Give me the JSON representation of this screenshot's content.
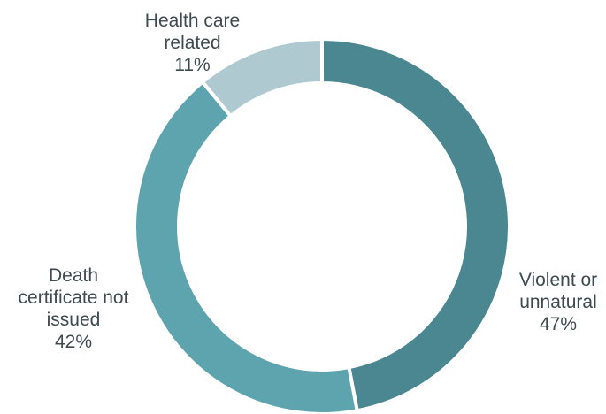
{
  "chart_data": {
    "type": "donut",
    "title": "",
    "slices": [
      {
        "lines": [
          "Violent or",
          "unnatural"
        ],
        "value": 47,
        "value_label": "47%",
        "color": "#4a8790"
      },
      {
        "lines": [
          "Death",
          "certificate not",
          "issued"
        ],
        "value": 42,
        "value_label": "42%",
        "color": "#5da4af"
      },
      {
        "lines": [
          "Health care",
          "related"
        ],
        "value": 11,
        "value_label": "11%",
        "color": "#aec9d0"
      }
    ],
    "start_angle": "12 o'clock",
    "direction": "clockwise",
    "legend": "none"
  }
}
